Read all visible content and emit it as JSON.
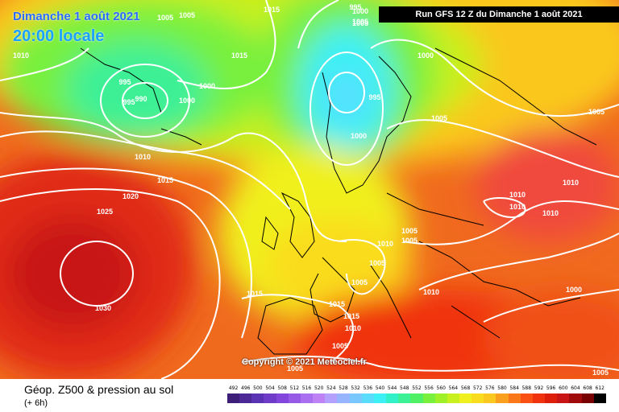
{
  "header": {
    "date_line": "Dimanche 1 août 2021",
    "time_line": "20:00 locale",
    "run_info": "Run GFS 12 Z du Dimanche 1 août 2021"
  },
  "copyright": "Copyright © 2021 Meteociel.fr",
  "legend": {
    "title": "Géop. Z500 & pression au sol",
    "subtitle": "(+ 6h)",
    "scale_values": [
      "492",
      "496",
      "500",
      "504",
      "508",
      "512",
      "516",
      "520",
      "524",
      "528",
      "532",
      "536",
      "540",
      "544",
      "548",
      "552",
      "556",
      "560",
      "564",
      "568",
      "572",
      "576",
      "580",
      "584",
      "588",
      "592",
      "596",
      "600",
      "604",
      "608",
      "612"
    ],
    "scale_colors": [
      "#3c1e78",
      "#4b2896",
      "#5a32b4",
      "#6e3cc8",
      "#8246dc",
      "#965ae6",
      "#aa6ef0",
      "#be82f5",
      "#b4a0ff",
      "#96b4ff",
      "#78c8ff",
      "#5adcff",
      "#3cf0f5",
      "#32f0c8",
      "#3cf096",
      "#50f064",
      "#78f03c",
      "#a0f028",
      "#c8f01e",
      "#f0f01e",
      "#fadc1e",
      "#fac81e",
      "#faa01e",
      "#fa7819",
      "#fa5014",
      "#f0320f",
      "#dc1e0a",
      "#c81414",
      "#a00a0a",
      "#780000",
      "#000000"
    ]
  },
  "map": {
    "pressure_labels": [
      {
        "text": "995"
      },
      {
        "text": "1005"
      },
      {
        "text": "1005"
      },
      {
        "text": "1015"
      },
      {
        "text": "1000"
      },
      {
        "text": "1005"
      },
      {
        "text": "1010"
      },
      {
        "text": "995"
      },
      {
        "text": "995"
      },
      {
        "text": "990"
      },
      {
        "text": "1000"
      },
      {
        "text": "1000"
      },
      {
        "text": "1015"
      },
      {
        "text": "995"
      },
      {
        "text": "1000"
      },
      {
        "text": "1000"
      },
      {
        "text": "1005"
      },
      {
        "text": "1005"
      },
      {
        "text": "1010"
      },
      {
        "text": "1015"
      },
      {
        "text": "1020"
      },
      {
        "text": "1025"
      },
      {
        "text": "1030"
      },
      {
        "text": "1010"
      },
      {
        "text": "1010"
      },
      {
        "text": "1010"
      },
      {
        "text": "1010"
      },
      {
        "text": "1005"
      },
      {
        "text": "1005"
      },
      {
        "text": "1010"
      },
      {
        "text": "1005"
      },
      {
        "text": "1005"
      },
      {
        "text": "1010"
      },
      {
        "text": "1000"
      },
      {
        "text": "1015"
      },
      {
        "text": "1015"
      },
      {
        "text": "1015"
      },
      {
        "text": "1010"
      },
      {
        "text": "1005"
      },
      {
        "text": "1005"
      }
    ]
  }
}
